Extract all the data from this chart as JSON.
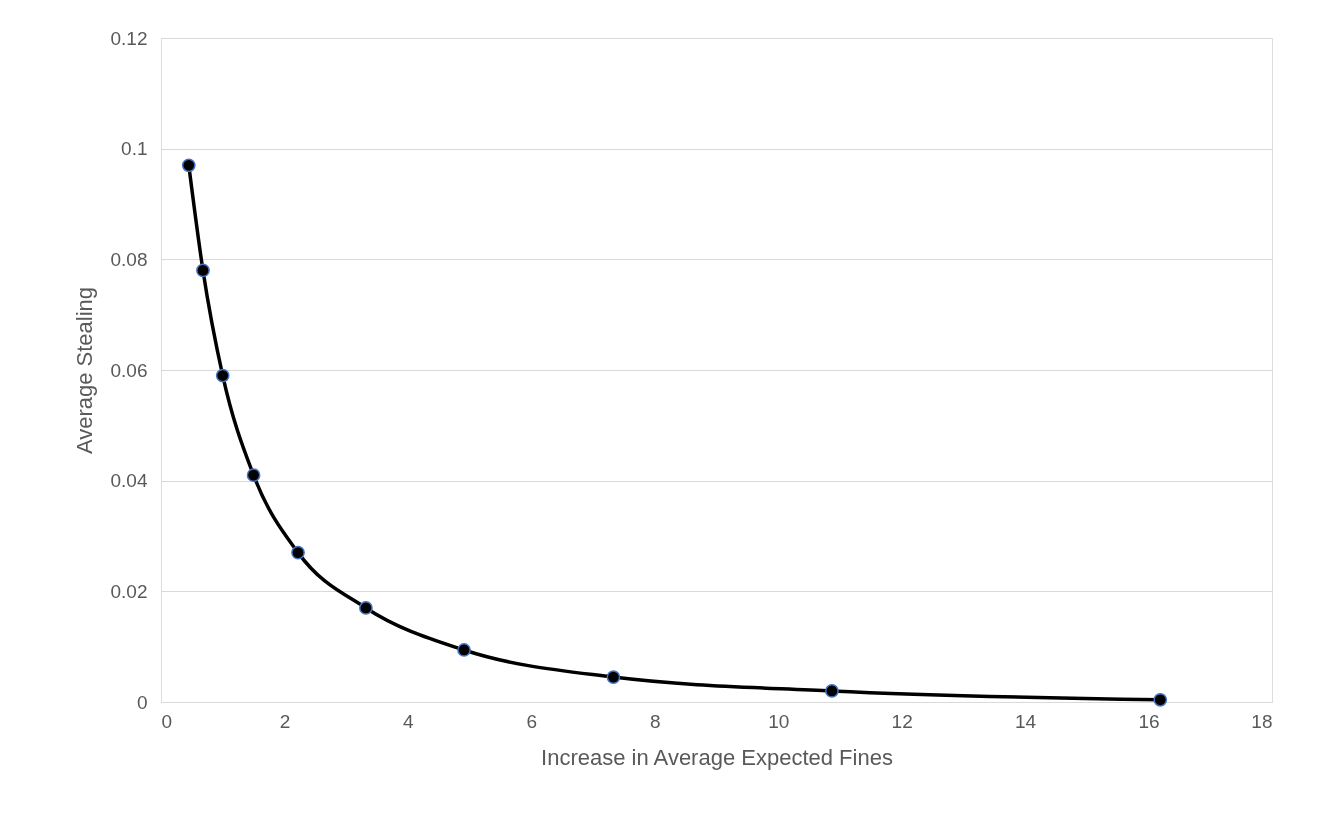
{
  "chart_data": {
    "type": "line",
    "xlabel": "Increase in Average Expected Fines",
    "ylabel": "Average Stealing",
    "x": [
      0.45,
      0.68,
      1.0,
      1.5,
      2.22,
      3.32,
      4.91,
      7.33,
      10.87,
      16.19
    ],
    "series": [
      {
        "color": "#000000",
        "values": [
          0.097,
          0.078,
          0.059,
          0.041,
          0.027,
          0.017,
          0.0094,
          0.0045,
          0.002,
          0.0004
        ]
      }
    ],
    "xlim": [
      0,
      18
    ],
    "xticks": [
      0,
      2,
      4,
      6,
      8,
      10,
      12,
      14,
      16,
      18
    ],
    "ylim": [
      0,
      0.12
    ],
    "yticks": [
      0,
      0.02,
      0.04,
      0.06,
      0.08,
      0.1,
      0.12
    ],
    "grid": "y",
    "marker": "circle",
    "line_style": "solid"
  }
}
